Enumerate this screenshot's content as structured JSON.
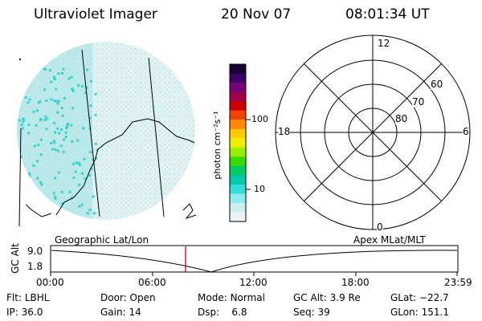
{
  "header": {
    "title": "Ultraviolet Imager",
    "date": "20 Nov 07",
    "time": "08:01:34 UT"
  },
  "colorbar": {
    "unit_label": "photon cm⁻²s⁻¹",
    "ticks": [
      "100",
      "10"
    ],
    "scale": "log",
    "colors": [
      "#1a0033",
      "#3a0066",
      "#7a007a",
      "#a0004a",
      "#cc0000",
      "#ee4400",
      "#ff8800",
      "#ffcc00",
      "#eeee00",
      "#99ee00",
      "#33dd00",
      "#00cc66",
      "#00ccaa",
      "#33dddd",
      "#88eeee",
      "#cceeee",
      "#e8f4f4"
    ]
  },
  "polar_grid": {
    "clock_labels": {
      "top": "12",
      "left": "18",
      "right": "6",
      "bottom": "0"
    },
    "lat_labels": [
      "60",
      "70",
      "80"
    ]
  },
  "map_labels": {
    "left": "Geographic Lat/Lon",
    "right": "Apex MLat/MLT"
  },
  "altitude_strip": {
    "ylabel": "GC Alt",
    "y_ticks": [
      "9.0",
      "1.8"
    ],
    "x_ticks": [
      "00:00",
      "06:00",
      "12:00",
      "18:00",
      "23:59"
    ],
    "marker_color": "#cc0000"
  },
  "status": {
    "row1": [
      {
        "label": "Flt:",
        "value": "LBHL"
      },
      {
        "label": "Door:",
        "value": "Open"
      },
      {
        "label": "Mode:",
        "value": "Normal"
      },
      {
        "label": "GC Alt:",
        "value": "3.9 Re"
      },
      {
        "label": "GLat:",
        "value": "−22.7"
      }
    ],
    "row2": [
      {
        "label": "IP:",
        "value": "36.0"
      },
      {
        "label": "Gain:",
        "value": "14"
      },
      {
        "label": "Dsp:",
        "value": "6.8"
      },
      {
        "label": "Seq:",
        "value": "39"
      },
      {
        "label": "GLon:",
        "value": "151.1"
      }
    ]
  }
}
